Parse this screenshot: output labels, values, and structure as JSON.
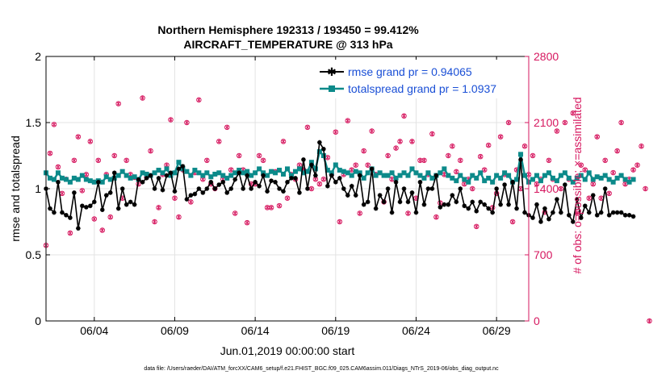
{
  "chart_data": {
    "type": "line",
    "title_line1": "Northern Hemisphere 192313 / 193450 = 99.412%",
    "title_line2": "AIRCRAFT_TEMPERATURE @ 313 hPa",
    "xlabel": "Jun.01,2019 00:00:00 start",
    "ylabel_left": "rmse and totalspread",
    "ylabel_right": "# of obs: o=possible; ×=assimilated",
    "xlim": [
      1,
      31
    ],
    "ylim_left": [
      0,
      2
    ],
    "ylim_right": [
      0,
      2800
    ],
    "x_ticks": [
      {
        "x": 4,
        "label": "06/04"
      },
      {
        "x": 9,
        "label": "06/09"
      },
      {
        "x": 14,
        "label": "06/14"
      },
      {
        "x": 19,
        "label": "06/19"
      },
      {
        "x": 24,
        "label": "06/24"
      },
      {
        "x": 29,
        "label": "06/29"
      }
    ],
    "y_ticks_left": [
      "0",
      "0.5",
      "1",
      "1.5",
      "2"
    ],
    "y_ticks_right": [
      "0",
      "700",
      "1400",
      "2100",
      "2800"
    ],
    "time_step_days": 0.25,
    "series": [
      {
        "name": "rmse grand pr = 0.94065",
        "color": "#000000",
        "marker": "asterisk",
        "values": [
          1.0,
          0.85,
          0.82,
          1.05,
          0.82,
          0.8,
          0.78,
          0.97,
          0.7,
          0.87,
          0.86,
          0.87,
          0.9,
          1.05,
          0.84,
          0.95,
          0.97,
          1.12,
          0.85,
          1.0,
          0.88,
          0.9,
          0.88,
          1.07,
          1.05,
          1.08,
          1.1,
          1.0,
          1.08,
          0.99,
          1.1,
          1.12,
          0.98,
          1.15,
          1.17,
          0.92,
          0.95,
          0.96,
          1.0,
          0.97,
          1.0,
          1.05,
          1.0,
          1.03,
          1.05,
          0.97,
          1.0,
          1.07,
          1.12,
          1.0,
          1.1,
          1.0,
          1.05,
          1.02,
          1.1,
          0.98,
          1.06,
          1.05,
          1.0,
          0.98,
          1.05,
          1.08,
          1.08,
          0.97,
          1.22,
          1.0,
          1.18,
          1.1,
          1.35,
          1.3,
          1.02,
          1.1,
          1.05,
          1.08,
          1.0,
          0.95,
          1.02,
          0.95,
          1.1,
          0.88,
          0.9,
          1.15,
          0.85,
          0.95,
          0.9,
          1.0,
          0.82,
          1.05,
          0.9,
          1.0,
          0.9,
          0.97,
          0.82,
          1.05,
          0.88,
          1.0,
          1.0,
          1.1,
          0.86,
          0.88,
          0.88,
          0.95,
          0.9,
          1.0,
          0.87,
          0.85,
          0.9,
          0.83,
          0.9,
          0.88,
          0.85,
          0.82,
          1.0,
          0.88,
          1.03,
          0.88,
          1.05,
          0.85,
          1.22,
          0.82,
          0.8,
          0.78,
          0.88,
          0.75,
          0.85,
          0.77,
          0.82,
          0.92,
          0.82,
          1.03,
          0.8,
          0.75,
          0.92,
          0.78,
          0.87,
          0.82,
          0.95,
          0.8,
          0.82,
          1.0,
          0.8,
          0.82,
          0.82,
          0.82,
          0.8,
          0.8,
          0.79
        ]
      },
      {
        "name": "totalspread grand pr = 1.0937",
        "color": "#0c8a8a",
        "marker": "square",
        "values": [
          1.12,
          1.08,
          1.07,
          1.12,
          1.08,
          1.07,
          1.05,
          1.08,
          1.07,
          1.1,
          1.07,
          1.06,
          1.05,
          1.06,
          1.05,
          1.09,
          1.07,
          1.08,
          1.1,
          1.13,
          1.1,
          1.08,
          1.09,
          1.07,
          1.12,
          1.11,
          1.1,
          1.12,
          1.14,
          1.12,
          1.15,
          1.1,
          1.12,
          1.2,
          1.15,
          1.13,
          1.1,
          1.14,
          1.12,
          1.1,
          1.12,
          1.09,
          1.11,
          1.12,
          1.1,
          1.08,
          1.1,
          1.12,
          1.14,
          1.12,
          1.13,
          1.1,
          1.12,
          1.15,
          1.12,
          1.1,
          1.13,
          1.12,
          1.14,
          1.11,
          1.15,
          1.1,
          1.13,
          1.15,
          1.12,
          1.13,
          1.2,
          1.15,
          1.28,
          1.25,
          1.14,
          1.12,
          1.18,
          1.14,
          1.13,
          1.12,
          1.1,
          1.13,
          1.12,
          1.08,
          1.12,
          1.15,
          1.1,
          1.12,
          1.1,
          1.1,
          1.12,
          1.08,
          1.1,
          1.12,
          1.1,
          1.15,
          1.12,
          1.1,
          1.08,
          1.12,
          1.08,
          1.1,
          1.12,
          1.15,
          1.1,
          1.08,
          1.06,
          1.1,
          1.07,
          1.05,
          1.1,
          1.08,
          1.12,
          1.06,
          1.08,
          1.05,
          1.1,
          1.08,
          1.12,
          1.1,
          1.05,
          1.07,
          1.26,
          1.1,
          1.05,
          1.07,
          1.1,
          1.06,
          1.1,
          1.12,
          1.08,
          1.06,
          1.1,
          1.12,
          1.08,
          1.05,
          1.08,
          1.1,
          1.07,
          1.12,
          1.07,
          1.09,
          1.08,
          1.1,
          1.07,
          1.05,
          1.08,
          1.1,
          1.07,
          1.05,
          1.07
        ]
      },
      {
        "name": "# of obs",
        "color": "#d6175f",
        "axis": "right",
        "values": [
          800,
          1775,
          2080,
          1630,
          1350,
          1500,
          930,
          1700,
          1950,
          1380,
          1550,
          1900,
          1080,
          1700,
          960,
          1550,
          1100,
          1750,
          2300,
          1300,
          1700,
          1550,
          1520,
          1450,
          2360,
          1520,
          1800,
          1050,
          1200,
          1550,
          1650,
          2130,
          1300,
          1100,
          1600,
          2100,
          1260,
          1570,
          2340,
          1500,
          1700,
          1450,
          1400,
          1900,
          1500,
          2050,
          1600,
          1140,
          1750,
          1600,
          1040,
          1450,
          1450,
          1750,
          1700,
          1200,
          1200,
          1580,
          1220,
          1900,
          1300,
          1550,
          1500,
          1650,
          1600,
          2050,
          1400,
          1500,
          1450,
          1500,
          1730,
          1550,
          2000,
          1050,
          1550,
          2120,
          1600,
          1650,
          1140,
          1800,
          1650,
          2010,
          1550,
          2450,
          1260,
          1750,
          1500,
          1830,
          1900,
          2170,
          1140,
          1900,
          1300,
          1700,
          1700,
          1550,
          1980,
          1100,
          1250,
          1550,
          1750,
          1850,
          1580,
          1700,
          1450,
          1500,
          1400,
          1000,
          1740,
          1600,
          1860,
          1200,
          1350,
          1950,
          1550,
          2100,
          1050,
          1600,
          1400,
          1850,
          1550,
          1750,
          1450,
          1500,
          1150,
          1700,
          1500,
          2010,
          1400,
          2100,
          1500,
          2200,
          1140,
          1650,
          1600,
          1300,
          1450,
          1950,
          1300,
          1700,
          1350,
          1570,
          1800,
          2100,
          1450,
          1500,
          1600,
          1650,
          1850,
          1400,
          0
        ]
      }
    ],
    "annotations": {
      "footer": "data file: /Users/raeder/DAI/ATM_forcXX/CAM6_setup/f.e21.FHIST_BGC.f09_025.CAM6assim.011/Diags_NTrS_2019-06/obs_diag_output.nc"
    }
  }
}
